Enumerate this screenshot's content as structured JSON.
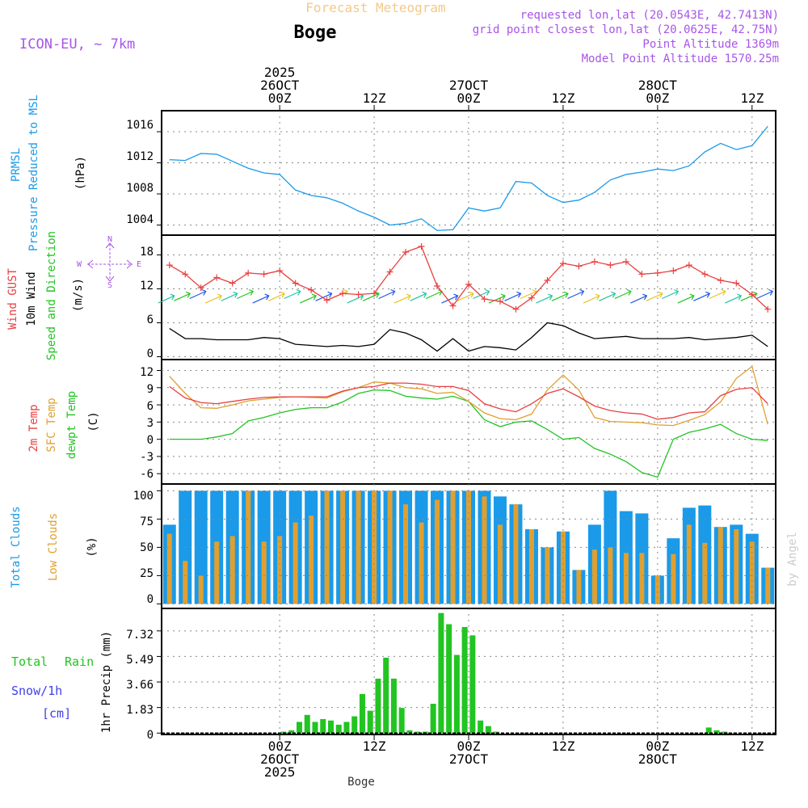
{
  "header": {
    "forecast_title": "Forecast Meteogram",
    "place": "Boge",
    "model": "ICON-EU, ~ 7km",
    "requested": "requested lon,lat (20.0543E, 42.7413N)",
    "grid_point": "grid point closest lon,lat (20.0625E, 42.75N)",
    "point_alt": "Point Altitude 1369m",
    "model_alt": "Model Point Altitude 1570.25m",
    "footer_place": "Boge",
    "watermark": "by Angel"
  },
  "colors": {
    "title": "#f2c98a",
    "purple": "#a855e8",
    "blue": "#1a9ae8",
    "red": "#e84040",
    "orange": "#e0a030",
    "green": "#22c422",
    "snow": "#4040e8",
    "black": "#000000"
  },
  "time_axis": {
    "hour_min": -15,
    "hour_max": 63,
    "top_ticks": [
      {
        "hour": 0,
        "lines": [
          "2025",
          "26OCT",
          "00Z"
        ]
      },
      {
        "hour": 12,
        "lines": [
          "12Z"
        ]
      },
      {
        "hour": 24,
        "lines": [
          "27OCT",
          "00Z"
        ]
      },
      {
        "hour": 36,
        "lines": [
          "12Z"
        ]
      },
      {
        "hour": 48,
        "lines": [
          "28OCT",
          "00Z"
        ]
      },
      {
        "hour": 60,
        "lines": [
          "12Z"
        ]
      }
    ],
    "bottom_ticks": [
      {
        "hour": 0,
        "lines": [
          "00Z",
          "26OCT",
          "2025"
        ]
      },
      {
        "hour": 12,
        "lines": [
          "12Z"
        ]
      },
      {
        "hour": 24,
        "lines": [
          "00Z",
          "27OCT"
        ]
      },
      {
        "hour": 36,
        "lines": [
          "12Z"
        ]
      },
      {
        "hour": 48,
        "lines": [
          "00Z",
          "28OCT"
        ]
      },
      {
        "hour": 60,
        "lines": [
          "12Z"
        ]
      }
    ]
  },
  "panels": {
    "pressure": {
      "labels": [
        "PRMSL",
        "Pressure Reduced to MSL",
        "(hPa)"
      ],
      "yticks": [
        "1004",
        "1008",
        "1012",
        "1016"
      ]
    },
    "wind": {
      "labels": [
        "Wind GUST",
        "10m Wind",
        "Speed and Direction",
        "(m/s)"
      ],
      "yticks": [
        "0",
        "6",
        "12",
        "18"
      ],
      "compass": {
        "n": "N",
        "s": "S",
        "w": "W",
        "e": "E"
      }
    },
    "temp": {
      "labels": [
        "2m Temp",
        "SFC Temp",
        "dewpt Temp",
        "(C)"
      ],
      "yticks": [
        "-6",
        "-3",
        "0",
        "3",
        "6",
        "9",
        "12"
      ]
    },
    "clouds": {
      "labels": [
        "Total Clouds",
        "Low Clouds",
        "(%)"
      ],
      "yticks": [
        "0",
        "25",
        "50",
        "75",
        "100"
      ]
    },
    "precip": {
      "labels": [
        "Total",
        "Rain",
        "Snow/1h",
        "[cm]",
        "1hr Precip (mm)"
      ],
      "yticks": [
        "0",
        "1.83",
        "3.66",
        "5.49",
        "7.32"
      ]
    }
  },
  "chart_data": [
    {
      "type": "line",
      "title": "PRMSL Pressure Reduced to MSL",
      "ylabel": "hPa",
      "ylim": [
        1002.7,
        1018.7
      ],
      "x": [
        -14,
        -12,
        -10,
        -8,
        -6,
        -4,
        -2,
        0,
        2,
        4,
        6,
        8,
        10,
        12,
        14,
        16,
        18,
        20,
        22,
        24,
        26,
        28,
        30,
        32,
        34,
        36,
        38,
        40,
        42,
        44,
        46,
        48,
        50,
        52,
        54,
        56,
        58,
        60,
        62
      ],
      "series": [
        {
          "name": "PRMSL",
          "values": [
            1012.4,
            1012.3,
            1013.2,
            1013.1,
            1012.2,
            1011.3,
            1010.7,
            1010.5,
            1008.5,
            1007.8,
            1007.5,
            1006.8,
            1005.8,
            1005.0,
            1004.0,
            1004.2,
            1004.8,
            1003.3,
            1003.4,
            1006.2,
            1005.8,
            1006.2,
            1009.6,
            1009.4,
            1007.8,
            1006.9,
            1007.2,
            1008.2,
            1009.8,
            1010.5,
            1010.8,
            1011.2,
            1011.0,
            1011.6,
            1013.4,
            1014.5,
            1013.7,
            1014.2,
            1016.7
          ]
        }
      ]
    },
    {
      "type": "line",
      "title": "Wind GUST / 10m Wind Speed and Direction",
      "ylabel": "m/s",
      "ylim": [
        -0.5,
        21.5
      ],
      "x": [
        -14,
        -12,
        -10,
        -8,
        -6,
        -4,
        -2,
        0,
        2,
        4,
        6,
        8,
        10,
        12,
        14,
        16,
        18,
        20,
        22,
        24,
        26,
        28,
        30,
        32,
        34,
        36,
        38,
        40,
        42,
        44,
        46,
        48,
        50,
        52,
        54,
        56,
        58,
        60,
        62
      ],
      "series": [
        {
          "name": "Wind GUST",
          "values": [
            16.2,
            14.6,
            12.2,
            14.0,
            13.0,
            14.8,
            14.6,
            15.2,
            13.0,
            11.8,
            10.0,
            11.2,
            11.0,
            11.2,
            15.0,
            18.5,
            19.5,
            12.5,
            9.0,
            12.8,
            10.2,
            9.8,
            8.4,
            10.4,
            13.5,
            16.5,
            16.0,
            16.8,
            16.2,
            16.8,
            14.6,
            14.8,
            15.2,
            16.2,
            14.6,
            13.5,
            13.0,
            11.0,
            8.4
          ]
        },
        {
          "name": "10m Wind",
          "values": [
            5.0,
            3.2,
            3.2,
            3.0,
            3.0,
            3.0,
            3.4,
            3.2,
            2.2,
            2.0,
            1.8,
            2.0,
            1.8,
            2.2,
            4.8,
            4.2,
            3.0,
            1.0,
            3.2,
            1.0,
            1.8,
            1.6,
            1.2,
            3.4,
            6.0,
            5.5,
            4.2,
            3.2,
            3.4,
            3.6,
            3.2,
            3.2,
            3.2,
            3.4,
            3.0,
            3.2,
            3.4,
            3.8,
            1.8
          ]
        }
      ]
    },
    {
      "type": "line",
      "title": "2m Temp / SFC Temp / dewpt Temp",
      "ylabel": "C",
      "ylim": [
        -7.8,
        13.9
      ],
      "x": [
        -14,
        -12,
        -10,
        -8,
        -6,
        -4,
        -2,
        0,
        2,
        4,
        6,
        8,
        10,
        12,
        14,
        16,
        18,
        20,
        22,
        24,
        26,
        28,
        30,
        32,
        34,
        36,
        38,
        40,
        42,
        44,
        46,
        48,
        50,
        52,
        54,
        56,
        58,
        60,
        62
      ],
      "series": [
        {
          "name": "2m Temp",
          "values": [
            9.2,
            7.2,
            6.4,
            6.2,
            6.6,
            7.0,
            7.3,
            7.4,
            7.4,
            7.4,
            7.4,
            8.4,
            9.0,
            9.2,
            9.8,
            9.8,
            9.6,
            9.2,
            9.2,
            8.5,
            6.2,
            5.3,
            4.8,
            6.2,
            8.0,
            8.8,
            7.4,
            5.8,
            5.0,
            4.6,
            4.4,
            3.5,
            3.8,
            4.6,
            4.8,
            7.6,
            8.7,
            9.0,
            6.2
          ]
        },
        {
          "name": "SFC Temp",
          "values": [
            11.0,
            8.0,
            5.5,
            5.4,
            6.0,
            6.7,
            7.0,
            7.3,
            7.4,
            7.3,
            7.2,
            8.3,
            9.0,
            10.0,
            9.8,
            9.0,
            8.8,
            8.0,
            8.2,
            6.6,
            4.6,
            3.6,
            3.4,
            4.4,
            8.6,
            11.2,
            8.6,
            3.8,
            3.1,
            3.0,
            2.9,
            2.5,
            2.4,
            3.3,
            4.3,
            6.5,
            10.6,
            12.7,
            2.6
          ]
        },
        {
          "name": "dewpt Temp",
          "values": [
            0.0,
            0.0,
            0.0,
            0.4,
            1.0,
            3.2,
            3.8,
            4.6,
            5.2,
            5.5,
            5.5,
            6.5,
            8.0,
            8.6,
            8.5,
            7.5,
            7.2,
            7.0,
            7.5,
            6.6,
            3.4,
            2.2,
            3.0,
            3.2,
            1.7,
            0.0,
            0.3,
            -1.6,
            -2.6,
            -3.9,
            -5.8,
            -6.6,
            0.0,
            1.2,
            1.8,
            2.6,
            1.0,
            0.0,
            -0.2
          ]
        }
      ]
    },
    {
      "type": "bar",
      "title": "Total Clouds / Low Clouds",
      "ylabel": "%",
      "ylim": [
        -4,
        106
      ],
      "x": [
        -14,
        -12,
        -10,
        -8,
        -6,
        -4,
        -2,
        0,
        2,
        4,
        6,
        8,
        10,
        12,
        14,
        16,
        18,
        20,
        22,
        24,
        26,
        28,
        30,
        32,
        34,
        36,
        38,
        40,
        42,
        44,
        46,
        48,
        50,
        52,
        54,
        56,
        58,
        60,
        62
      ],
      "series": [
        {
          "name": "Total Clouds",
          "values": [
            70,
            100,
            100,
            100,
            100,
            100,
            100,
            100,
            100,
            100,
            100,
            100,
            100,
            100,
            100,
            100,
            100,
            100,
            100,
            100,
            100,
            95,
            88,
            66,
            50,
            64,
            30,
            70,
            100,
            82,
            80,
            25,
            58,
            85,
            87,
            68,
            70,
            62,
            32
          ]
        },
        {
          "name": "Low Clouds",
          "values": [
            62,
            38,
            25,
            55,
            60,
            100,
            55,
            60,
            72,
            78,
            100,
            100,
            100,
            100,
            100,
            88,
            72,
            92,
            100,
            100,
            95,
            70,
            88,
            66,
            50,
            64,
            30,
            48,
            50,
            45,
            45,
            25,
            44,
            70,
            54,
            68,
            66,
            55,
            32
          ]
        }
      ]
    },
    {
      "type": "bar",
      "title": "1hr Precip (mm)",
      "ylabel": "mm",
      "ylim": [
        -0.1,
        8.93
      ],
      "x": [
        1,
        2,
        3,
        4,
        5,
        6,
        7,
        8,
        9,
        10,
        11,
        12,
        13,
        14,
        15,
        16,
        17,
        18,
        19,
        20,
        21,
        22,
        23,
        24,
        25,
        26,
        27,
        28,
        55,
        56,
        57
      ],
      "series": [
        {
          "name": "Total Rain",
          "values": [
            0.1,
            0.2,
            0.8,
            1.3,
            0.8,
            1.0,
            0.9,
            0.6,
            0.8,
            1.2,
            2.8,
            1.6,
            3.9,
            5.4,
            3.9,
            1.8,
            0.2,
            0.1,
            0.1,
            2.1,
            8.6,
            7.8,
            5.6,
            7.6,
            7.0,
            0.9,
            0.5,
            0.1,
            0.4,
            0.2,
            0.1
          ]
        }
      ]
    }
  ]
}
